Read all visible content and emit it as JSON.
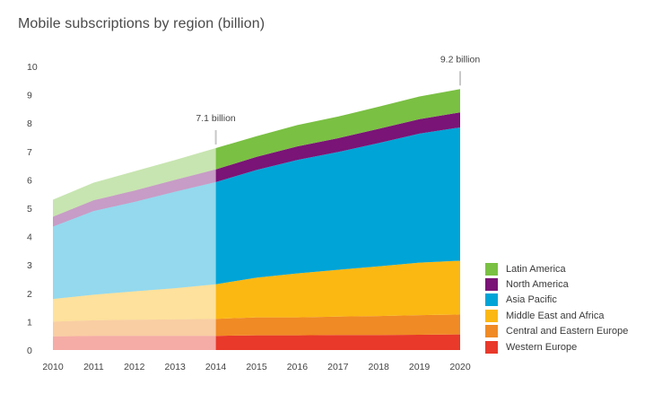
{
  "chart_data": {
    "type": "area",
    "stacked": true,
    "title": "Mobile subscriptions by region (billion)",
    "x": [
      2010,
      2011,
      2012,
      2013,
      2014,
      2015,
      2016,
      2017,
      2018,
      2019,
      2020
    ],
    "x_tick_labels": [
      "2010",
      "2011",
      "2012",
      "2013",
      "2014",
      "2015",
      "2016",
      "2017",
      "2018",
      "2019",
      "2020"
    ],
    "y_tick_labels": [
      "0",
      "1",
      "2",
      "3",
      "4",
      "5",
      "6",
      "7",
      "8",
      "9",
      "10"
    ],
    "ylim": [
      0,
      10
    ],
    "grid": false,
    "legend_position": "bottom-right",
    "forecast_start": 2014,
    "series": [
      {
        "name": "Western Europe",
        "color": "#e8392a",
        "values": [
          0.48,
          0.5,
          0.5,
          0.5,
          0.5,
          0.52,
          0.52,
          0.53,
          0.53,
          0.54,
          0.55
        ]
      },
      {
        "name": "Central and Eastern Europe",
        "color": "#f08a24",
        "values": [
          0.52,
          0.55,
          0.57,
          0.58,
          0.6,
          0.63,
          0.63,
          0.65,
          0.67,
          0.69,
          0.7
        ]
      },
      {
        "name": "Middle East and Africa",
        "color": "#fbb813",
        "values": [
          0.8,
          0.9,
          1.0,
          1.1,
          1.22,
          1.4,
          1.55,
          1.65,
          1.75,
          1.85,
          1.9
        ]
      },
      {
        "name": "Asia Pacific",
        "color": "#00a4d6",
        "values": [
          2.55,
          2.95,
          3.15,
          3.4,
          3.6,
          3.8,
          4.0,
          4.15,
          4.35,
          4.55,
          4.7
        ]
      },
      {
        "name": "North America",
        "color": "#7a1476",
        "values": [
          0.35,
          0.38,
          0.4,
          0.42,
          0.45,
          0.46,
          0.48,
          0.49,
          0.5,
          0.51,
          0.53
        ]
      },
      {
        "name": "Latin America",
        "color": "#7ac043",
        "values": [
          0.6,
          0.62,
          0.68,
          0.7,
          0.75,
          0.73,
          0.75,
          0.76,
          0.78,
          0.8,
          0.82
        ]
      }
    ],
    "annotations": [
      {
        "text": "7.1 billion",
        "x": 2014
      },
      {
        "text": "9.2 billion",
        "x": 2020
      }
    ]
  }
}
